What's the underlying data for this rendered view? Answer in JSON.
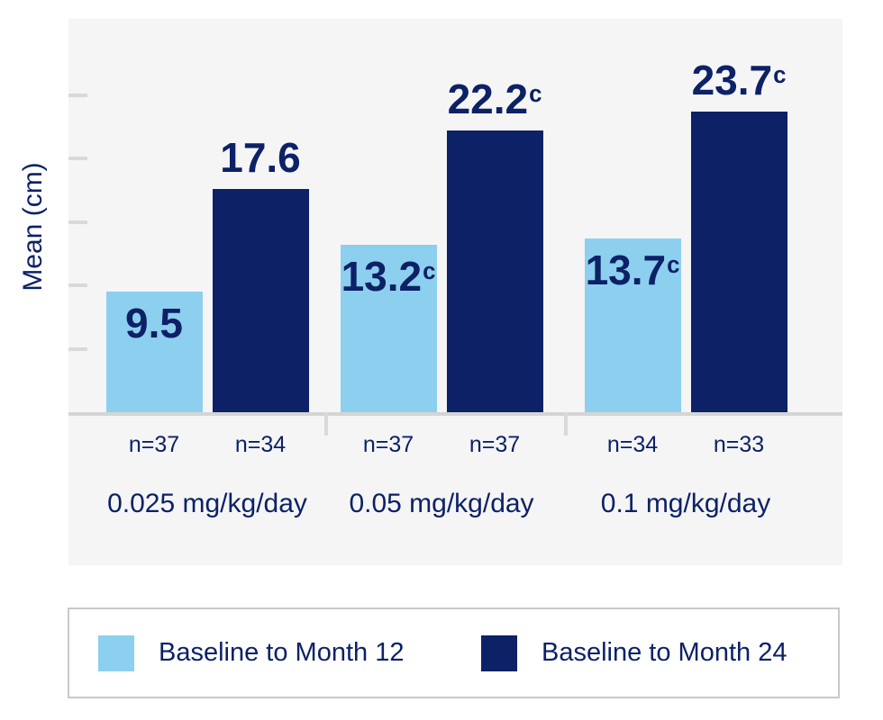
{
  "chart_data": {
    "type": "bar",
    "title": "",
    "y_axis_label": "Mean (cm)",
    "ylim": [
      0,
      31
    ],
    "yticks_unlabeled": [
      5,
      10,
      15,
      20,
      25
    ],
    "grid": false,
    "legend_position": "bottom",
    "categories": [
      "0.025 mg/kg/day",
      "0.05 mg/kg/day",
      "0.1 mg/kg/day"
    ],
    "series": [
      {
        "name": "Baseline to Month 12",
        "color": "#8dcfee",
        "value_label_position": "inside-top",
        "values": [
          9.5,
          13.2,
          13.7
        ],
        "value_label_superscripts": [
          "",
          "c",
          "c"
        ],
        "n_labels": [
          "n=37",
          "n=37",
          "n=34"
        ]
      },
      {
        "name": "Baseline to Month 24",
        "color": "#0c2166",
        "value_label_position": "above",
        "values": [
          17.6,
          22.2,
          23.7
        ],
        "value_label_superscripts": [
          "",
          "c",
          "c"
        ],
        "n_labels": [
          "n=34",
          "n=37",
          "n=33"
        ]
      }
    ],
    "colors": {
      "text": "#0c2166",
      "bar_light": "#8dcfee",
      "bar_dark": "#0c2166",
      "plot_background": "#f5f5f6",
      "axis_line": "#d5d5d5",
      "tick": "#d9d9d9",
      "legend_border": "#c9c9c9"
    }
  }
}
